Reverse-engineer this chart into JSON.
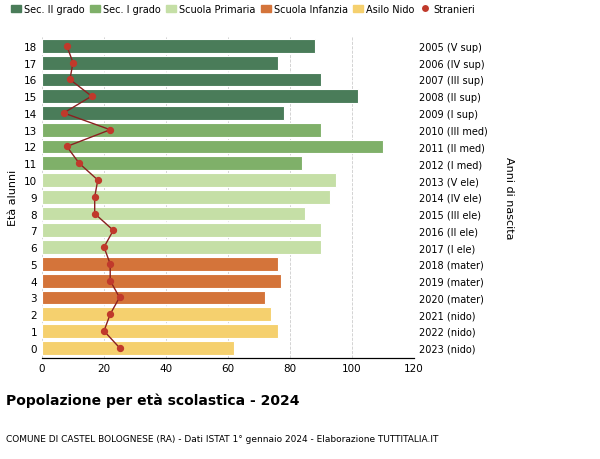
{
  "ages": [
    18,
    17,
    16,
    15,
    14,
    13,
    12,
    11,
    10,
    9,
    8,
    7,
    6,
    5,
    4,
    3,
    2,
    1,
    0
  ],
  "years": [
    "2005 (V sup)",
    "2006 (IV sup)",
    "2007 (III sup)",
    "2008 (II sup)",
    "2009 (I sup)",
    "2010 (III med)",
    "2011 (II med)",
    "2012 (I med)",
    "2013 (V ele)",
    "2014 (IV ele)",
    "2015 (III ele)",
    "2016 (II ele)",
    "2017 (I ele)",
    "2018 (mater)",
    "2019 (mater)",
    "2020 (mater)",
    "2021 (nido)",
    "2022 (nido)",
    "2023 (nido)"
  ],
  "bar_values": [
    88,
    76,
    90,
    102,
    78,
    90,
    110,
    84,
    95,
    93,
    85,
    90,
    90,
    76,
    77,
    72,
    74,
    76,
    62
  ],
  "bar_colors": [
    "#4a7c59",
    "#4a7c59",
    "#4a7c59",
    "#4a7c59",
    "#4a7c59",
    "#7fb069",
    "#7fb069",
    "#7fb069",
    "#c5dfa6",
    "#c5dfa6",
    "#c5dfa6",
    "#c5dfa6",
    "#c5dfa6",
    "#d4743a",
    "#d4743a",
    "#d4743a",
    "#f5d06e",
    "#f5d06e",
    "#f5d06e"
  ],
  "stranieri_values": [
    8,
    10,
    9,
    16,
    7,
    22,
    8,
    12,
    18,
    17,
    17,
    23,
    20,
    22,
    22,
    25,
    22,
    20,
    25
  ],
  "legend_labels": [
    "Sec. II grado",
    "Sec. I grado",
    "Scuola Primaria",
    "Scuola Infanzia",
    "Asilo Nido",
    "Stranieri"
  ],
  "legend_colors": [
    "#4a7c59",
    "#7fb069",
    "#c5dfa6",
    "#d4743a",
    "#f5d06e",
    "#c0392b"
  ],
  "title": "Popolazione per età scolastica - 2024",
  "subtitle": "COMUNE DI CASTEL BOLOGNESE (RA) - Dati ISTAT 1° gennaio 2024 - Elaborazione TUTTITALIA.IT",
  "ylabel_left": "Età alunni",
  "ylabel_right": "Anni di nascita",
  "xlim": [
    0,
    120
  ],
  "xticks": [
    0,
    20,
    40,
    60,
    80,
    100,
    120
  ],
  "background_color": "#ffffff",
  "grid_color": "#cccccc",
  "stranieri_color": "#c0392b",
  "stranieri_line_color": "#8b2020"
}
